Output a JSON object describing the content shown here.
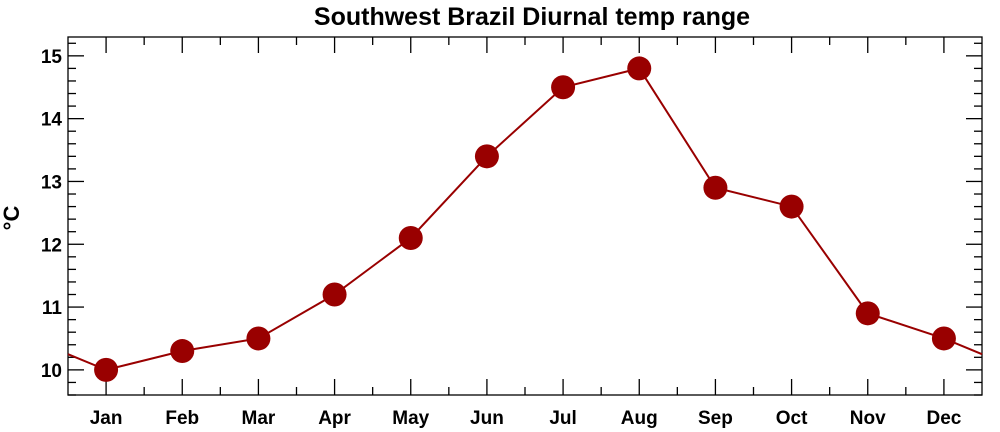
{
  "chart_data": {
    "type": "line",
    "title": "Southwest Brazil Diurnal temp range",
    "xlabel": "",
    "ylabel": "°C",
    "categories": [
      "Jan",
      "Feb",
      "Mar",
      "Apr",
      "May",
      "Jun",
      "Jul",
      "Aug",
      "Sep",
      "Oct",
      "Nov",
      "Dec"
    ],
    "series": [
      {
        "values": [
          10.0,
          10.3,
          10.5,
          11.2,
          12.1,
          13.4,
          14.5,
          14.8,
          12.9,
          12.6,
          10.9,
          10.5
        ]
      }
    ],
    "ylim": [
      9.6,
      15.3
    ],
    "yticks": [
      10,
      11,
      12,
      13,
      14,
      15
    ],
    "ytick_labels": [
      "10",
      "11",
      "12",
      "13",
      "14",
      "15"
    ],
    "line_wraps_periodically": true,
    "grid": false,
    "colors": {
      "series": "#990000",
      "axis": "#000000"
    }
  }
}
